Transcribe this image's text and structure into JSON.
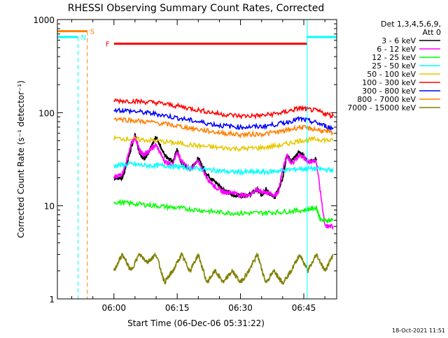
{
  "chart_data": {
    "type": "line",
    "title": "RHESSI Observing Summary Count Rates, Corrected",
    "xlabel": "Start Time (06-Dec-06 05:31:22)",
    "ylabel": "Corrected Count Rate (s⁻¹ detector⁻¹)",
    "y_scale": "log",
    "ylim": [
      1,
      1000
    ],
    "xlim": [
      -13.4,
      52.8
    ],
    "x_units": "minutes relative to 06:00",
    "x_ticks": [
      {
        "value": -15,
        "label": "05:45"
      },
      {
        "value": 0,
        "label": "06:00"
      },
      {
        "value": 15,
        "label": "06:15"
      },
      {
        "value": 30,
        "label": "06:30"
      },
      {
        "value": 45,
        "label": "06:45"
      },
      {
        "value": 60,
        "label": "07:00"
      }
    ],
    "y_ticks": [
      {
        "value": 1,
        "label": "1"
      },
      {
        "value": 10,
        "label": "10"
      },
      {
        "value": 100,
        "label": "100"
      },
      {
        "value": 1000,
        "label": "1000"
      }
    ],
    "legend_header": [
      "Det 1,3,4,5,6,9,",
      "Att 0"
    ],
    "legend_position": "right",
    "footer_timestamp": "18-Oct-2021 11:51",
    "series": [
      {
        "name": "3 - 6 keV",
        "color": "#000000",
        "x": [
          0,
          2,
          3,
          4,
          5,
          6,
          7,
          8,
          10,
          12,
          14,
          15,
          16,
          18,
          20,
          22,
          24,
          26,
          28,
          30,
          32,
          34,
          35,
          36,
          38,
          39,
          40,
          41,
          42,
          44,
          46,
          48
        ],
        "y": [
          20,
          20,
          28,
          40,
          58,
          38,
          32,
          35,
          55,
          35,
          30,
          40,
          28,
          25,
          32,
          22,
          18,
          15,
          13,
          13,
          13,
          15,
          13,
          15,
          12,
          15,
          20,
          35,
          30,
          38,
          30,
          32
        ]
      },
      {
        "name": "6 - 12 keV",
        "color": "#ff00ff",
        "x": [
          0,
          2,
          3,
          4,
          5,
          6,
          7,
          8,
          10,
          12,
          14,
          15,
          16,
          18,
          20,
          22,
          24,
          26,
          28,
          30,
          32,
          34,
          35,
          36,
          38,
          39,
          40,
          41,
          42,
          44,
          46,
          48,
          50,
          52
        ],
        "y": [
          20,
          22,
          30,
          45,
          55,
          40,
          35,
          38,
          45,
          30,
          28,
          38,
          30,
          25,
          30,
          20,
          16,
          14,
          14,
          13,
          13,
          15,
          14,
          14,
          13,
          14,
          25,
          35,
          28,
          35,
          30,
          30,
          6,
          6
        ]
      },
      {
        "name": "12 - 25 keV",
        "color": "#00ff00",
        "x": [
          0,
          5,
          10,
          15,
          20,
          25,
          30,
          35,
          40,
          45,
          48,
          49,
          52
        ],
        "y": [
          11,
          10.5,
          10,
          9.5,
          9,
          8.5,
          8.3,
          8.4,
          8.6,
          9,
          9.5,
          7,
          7
        ]
      },
      {
        "name": "25 - 50 keV",
        "color": "#00ffff",
        "x": [
          0,
          4,
          8,
          12,
          16,
          20,
          24,
          28,
          32,
          36,
          40,
          44,
          48,
          52
        ],
        "y": [
          27,
          28,
          27,
          27,
          26,
          25,
          24,
          23,
          23,
          23,
          24,
          25,
          25,
          24
        ]
      },
      {
        "name": "50 - 100 keV",
        "color": "#e6c800",
        "x": [
          0,
          5,
          10,
          15,
          20,
          25,
          30,
          35,
          40,
          44,
          48,
          52
        ],
        "y": [
          53,
          52,
          50,
          47,
          44,
          42,
          41,
          42,
          45,
          50,
          52,
          50
        ]
      },
      {
        "name": "100 - 300 keV",
        "color": "#ff0000",
        "x": [
          0,
          5,
          10,
          15,
          20,
          25,
          30,
          35,
          40,
          44,
          48,
          52
        ],
        "y": [
          135,
          133,
          128,
          118,
          107,
          97,
          92,
          93,
          100,
          112,
          105,
          92
        ]
      },
      {
        "name": "300 - 800 keV",
        "color": "#0000ff",
        "x": [
          0,
          5,
          10,
          15,
          20,
          25,
          30,
          35,
          40,
          44,
          48,
          52
        ],
        "y": [
          108,
          103,
          97,
          88,
          80,
          73,
          70,
          71,
          77,
          86,
          78,
          67
        ]
      },
      {
        "name": "800 - 7000 keV",
        "color": "#ff8000",
        "x": [
          0,
          5,
          10,
          15,
          20,
          25,
          30,
          35,
          40,
          44,
          48,
          52
        ],
        "y": [
          87,
          82,
          78,
          72,
          66,
          61,
          58,
          59,
          63,
          70,
          66,
          60
        ]
      },
      {
        "name": "7000 - 15000 keV",
        "color": "#808000",
        "x": [
          0,
          2,
          4,
          6,
          8,
          10,
          12,
          14,
          16,
          18,
          20,
          22,
          24,
          26,
          28,
          30,
          32,
          34,
          36,
          38,
          40,
          42,
          44,
          46,
          48,
          50,
          52
        ],
        "y": [
          2,
          3,
          2,
          3,
          2.5,
          3,
          1.5,
          2,
          3,
          2,
          3,
          1.5,
          2,
          1.5,
          2,
          1.5,
          2,
          3,
          1.5,
          2,
          1.5,
          2,
          3,
          2,
          3,
          2,
          3
        ]
      }
    ],
    "annotations": [
      {
        "label": "S",
        "type": "segment",
        "color": "#ff8000",
        "x_start": -13.4,
        "x_end": -6.3,
        "y": 750,
        "dashed_line_x": -6.3
      },
      {
        "label": "N",
        "type": "segment",
        "color": "#00ffff",
        "x_start": -13.4,
        "x_end": -8.5,
        "y": 650,
        "dashed_line_x": -8.5
      },
      {
        "label": "F",
        "type": "segment",
        "color": "#ff0000",
        "x_start": 0,
        "x_end": 45.8,
        "y": 550
      },
      {
        "label": "",
        "type": "segment",
        "color": "#00ffff",
        "x_start": 45.8,
        "x_end": 52.8,
        "y": 650
      },
      {
        "label": "",
        "type": "vline",
        "color": "#00ffff",
        "x": 45.8
      }
    ]
  }
}
